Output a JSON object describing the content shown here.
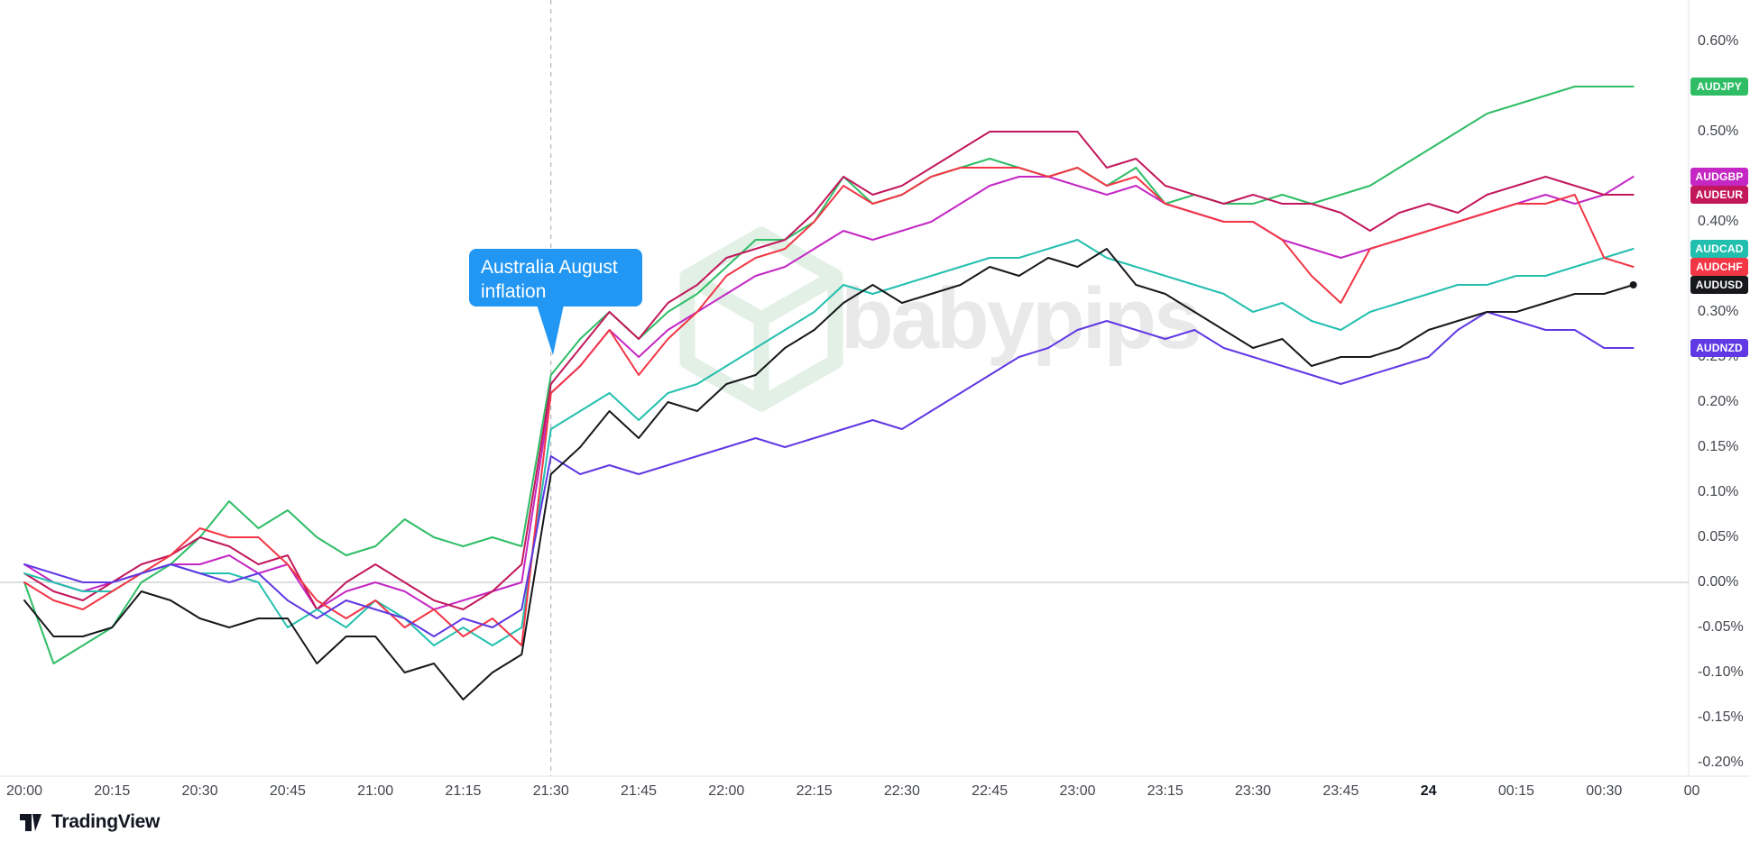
{
  "chart_data": {
    "type": "line",
    "ylabel": "percent change",
    "ylim": [
      -0.2,
      0.6
    ],
    "grid": "zero-line-only",
    "legend_position": "right-price-scale-badges",
    "event_line_x": "21:30",
    "annotations": [
      {
        "text": "Australia August inflation",
        "x": "21:30",
        "color": "#2196F3"
      }
    ],
    "y_ticks": [
      "0.60%",
      "0.55%",
      "0.50%",
      "0.45%",
      "0.40%",
      "0.35%",
      "0.30%",
      "0.25%",
      "0.20%",
      "0.15%",
      "0.10%",
      "0.05%",
      "0.00%",
      "-0.05%",
      "-0.10%",
      "-0.15%",
      "-0.20%"
    ],
    "x_ticks": [
      "20:00",
      "20:15",
      "20:30",
      "20:45",
      "21:00",
      "21:15",
      "21:30",
      "21:45",
      "22:00",
      "22:15",
      "22:30",
      "22:45",
      "23:00",
      "23:15",
      "23:30",
      "23:45",
      "24",
      "00:15",
      "00:30",
      "00"
    ],
    "x": [
      "20:00",
      "20:05",
      "20:10",
      "20:15",
      "20:20",
      "20:25",
      "20:30",
      "20:35",
      "20:40",
      "20:45",
      "20:50",
      "20:55",
      "21:00",
      "21:05",
      "21:10",
      "21:15",
      "21:20",
      "21:25",
      "21:30",
      "21:35",
      "21:40",
      "21:45",
      "21:50",
      "21:55",
      "22:00",
      "22:05",
      "22:10",
      "22:15",
      "22:20",
      "22:25",
      "22:30",
      "22:35",
      "22:40",
      "22:45",
      "22:50",
      "22:55",
      "23:00",
      "23:05",
      "23:10",
      "23:15",
      "23:20",
      "23:25",
      "23:30",
      "23:35",
      "23:40",
      "23:45",
      "23:50",
      "23:55",
      "00:00",
      "00:05",
      "00:10",
      "00:15",
      "00:20",
      "00:25",
      "00:30",
      "00:35"
    ],
    "series": [
      {
        "name": "AUDJPY",
        "color": "#2EBD65",
        "values": [
          0.0,
          -0.09,
          -0.07,
          -0.05,
          0.0,
          0.02,
          0.05,
          0.09,
          0.06,
          0.08,
          0.05,
          0.03,
          0.04,
          0.07,
          0.05,
          0.04,
          0.05,
          0.04,
          0.23,
          0.27,
          0.3,
          0.27,
          0.3,
          0.32,
          0.35,
          0.38,
          0.38,
          0.4,
          0.45,
          0.42,
          0.43,
          0.45,
          0.46,
          0.47,
          0.46,
          0.45,
          0.46,
          0.44,
          0.46,
          0.42,
          0.43,
          0.42,
          0.42,
          0.43,
          0.42,
          0.43,
          0.44,
          0.46,
          0.48,
          0.5,
          0.52,
          0.53,
          0.54,
          0.55,
          0.55,
          0.55
        ]
      },
      {
        "name": "AUDGBP",
        "color": "#C427C4",
        "values": [
          0.02,
          0.0,
          -0.01,
          0.0,
          0.01,
          0.02,
          0.02,
          0.03,
          0.01,
          0.02,
          -0.03,
          -0.01,
          0.0,
          -0.01,
          -0.03,
          -0.02,
          -0.01,
          0.0,
          0.21,
          0.24,
          0.28,
          0.25,
          0.28,
          0.3,
          0.32,
          0.34,
          0.35,
          0.37,
          0.39,
          0.38,
          0.39,
          0.4,
          0.42,
          0.44,
          0.45,
          0.45,
          0.44,
          0.43,
          0.44,
          0.42,
          0.41,
          0.4,
          0.4,
          0.38,
          0.37,
          0.36,
          0.37,
          0.38,
          0.39,
          0.4,
          0.41,
          0.42,
          0.43,
          0.42,
          0.43,
          0.45
        ]
      },
      {
        "name": "AUDEUR",
        "color": "#C2185B",
        "values": [
          0.01,
          -0.01,
          -0.02,
          0.0,
          0.02,
          0.03,
          0.05,
          0.04,
          0.02,
          0.03,
          -0.03,
          0.0,
          0.02,
          0.0,
          -0.02,
          -0.03,
          -0.01,
          0.02,
          0.22,
          0.26,
          0.3,
          0.27,
          0.31,
          0.33,
          0.36,
          0.37,
          0.38,
          0.41,
          0.45,
          0.43,
          0.44,
          0.46,
          0.48,
          0.5,
          0.5,
          0.5,
          0.5,
          0.46,
          0.47,
          0.44,
          0.43,
          0.42,
          0.43,
          0.42,
          0.42,
          0.41,
          0.39,
          0.41,
          0.42,
          0.41,
          0.43,
          0.44,
          0.45,
          0.44,
          0.43,
          0.43
        ]
      },
      {
        "name": "AUDCAD",
        "color": "#23BFAE",
        "values": [
          0.01,
          0.0,
          -0.01,
          -0.01,
          0.01,
          0.02,
          0.01,
          0.01,
          0.0,
          -0.05,
          -0.03,
          -0.05,
          -0.02,
          -0.04,
          -0.07,
          -0.05,
          -0.07,
          -0.05,
          0.17,
          0.19,
          0.21,
          0.18,
          0.21,
          0.22,
          0.24,
          0.26,
          0.28,
          0.3,
          0.33,
          0.32,
          0.33,
          0.34,
          0.35,
          0.36,
          0.36,
          0.37,
          0.38,
          0.36,
          0.35,
          0.34,
          0.33,
          0.32,
          0.3,
          0.31,
          0.29,
          0.28,
          0.3,
          0.31,
          0.32,
          0.33,
          0.33,
          0.34,
          0.34,
          0.35,
          0.36,
          0.37
        ]
      },
      {
        "name": "AUDCHF",
        "color": "#F23645",
        "values": [
          0.0,
          -0.02,
          -0.03,
          -0.01,
          0.01,
          0.03,
          0.06,
          0.05,
          0.05,
          0.02,
          -0.02,
          -0.04,
          -0.02,
          -0.05,
          -0.03,
          -0.06,
          -0.04,
          -0.07,
          0.21,
          0.24,
          0.28,
          0.23,
          0.27,
          0.3,
          0.34,
          0.36,
          0.37,
          0.4,
          0.44,
          0.42,
          0.43,
          0.45,
          0.46,
          0.46,
          0.46,
          0.45,
          0.46,
          0.44,
          0.45,
          0.42,
          0.41,
          0.4,
          0.4,
          0.38,
          0.34,
          0.31,
          0.37,
          0.38,
          0.39,
          0.4,
          0.41,
          0.42,
          0.42,
          0.43,
          0.36,
          0.35
        ]
      },
      {
        "name": "AUDUSD",
        "color": "#16181C",
        "values": [
          -0.02,
          -0.06,
          -0.06,
          -0.05,
          -0.01,
          -0.02,
          -0.04,
          -0.05,
          -0.04,
          -0.04,
          -0.09,
          -0.06,
          -0.06,
          -0.1,
          -0.09,
          -0.13,
          -0.1,
          -0.08,
          0.12,
          0.15,
          0.19,
          0.16,
          0.2,
          0.19,
          0.22,
          0.23,
          0.26,
          0.28,
          0.31,
          0.33,
          0.31,
          0.32,
          0.33,
          0.35,
          0.34,
          0.36,
          0.35,
          0.37,
          0.33,
          0.32,
          0.3,
          0.28,
          0.26,
          0.27,
          0.24,
          0.25,
          0.25,
          0.26,
          0.28,
          0.29,
          0.3,
          0.3,
          0.31,
          0.32,
          0.32,
          0.33
        ]
      },
      {
        "name": "AUDNZD",
        "color": "#6038E4",
        "values": [
          0.02,
          0.01,
          0.0,
          0.0,
          0.01,
          0.02,
          0.01,
          0.0,
          0.01,
          -0.02,
          -0.04,
          -0.02,
          -0.03,
          -0.04,
          -0.06,
          -0.04,
          -0.05,
          -0.03,
          0.14,
          0.12,
          0.13,
          0.12,
          0.13,
          0.14,
          0.15,
          0.16,
          0.15,
          0.16,
          0.17,
          0.18,
          0.17,
          0.19,
          0.21,
          0.23,
          0.25,
          0.26,
          0.28,
          0.29,
          0.28,
          0.27,
          0.28,
          0.26,
          0.25,
          0.24,
          0.23,
          0.22,
          0.23,
          0.24,
          0.25,
          0.28,
          0.3,
          0.29,
          0.28,
          0.28,
          0.26,
          0.26
        ]
      }
    ]
  },
  "watermark": {
    "text": "babypips"
  },
  "branding": {
    "logo_text": "TradingView"
  }
}
